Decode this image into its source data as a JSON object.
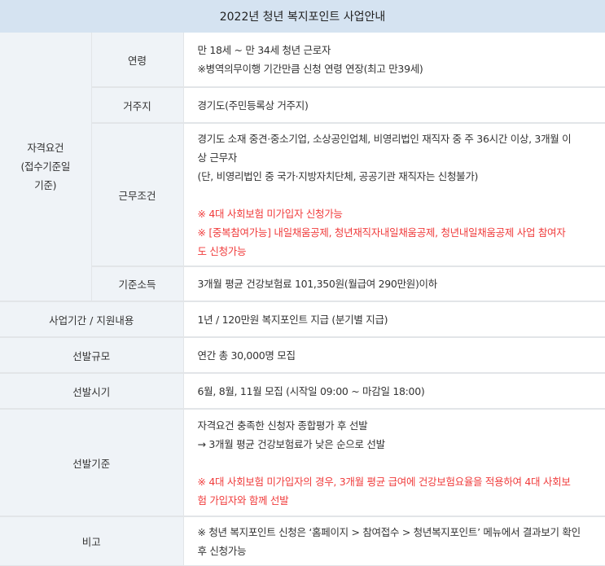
{
  "title": "2022년 청년 복지포인트 사업안내",
  "colors": {
    "header_bg": "#d5e3f1",
    "label_bg": "#eff3f7",
    "warning": "#f03c3c"
  },
  "qualification": {
    "label_lines": [
      "자격요건",
      "(접수기준일",
      "기준)"
    ],
    "age": {
      "label": "연령",
      "lines": [
        "만 18세 ~ 만 34세 청년 근로자",
        "※병역의무이행 기간만큼 신청 연령 연장(최고 만39세)"
      ]
    },
    "residence": {
      "label": "거주지",
      "lines": [
        "경기도(주민등록상 거주지)"
      ]
    },
    "employment": {
      "label": "근무조건",
      "lines": [
        "경기도 소재 중견·중소기업, 소상공인업체, 비영리법인 재직자 중 주 36시간 이상, 3개월 이",
        "상 근무자",
        "(단, 비영리법인 중 국가·지방자치단체, 공공기관 재직자는 신청불가)"
      ],
      "red_lines": [
        "※ 4대 사회보험 미가입자 신청가능",
        "※ [중복참여가능] 내일채움공제, 청년재직자내일채움공제, 청년내일채움공제 사업 참여자",
        "도 신청가능"
      ]
    },
    "income": {
      "label": "기준소득",
      "lines": [
        "3개월 평균 건강보험료 101,350원(월급여 290만원)이하"
      ]
    }
  },
  "period": {
    "label": "사업기간 / 지원내용",
    "lines": [
      "1년 / 120만원 복지포인트 지급 (분기별 지급)"
    ]
  },
  "scale": {
    "label": "선발규모",
    "lines": [
      "연간 총 30,000명 모집"
    ]
  },
  "timing": {
    "label": "선발시기",
    "lines": [
      "6월, 8월, 11월 모집 (시작일 09:00 ~ 마감일 18:00)"
    ]
  },
  "criteria": {
    "label": "선발기준",
    "lines": [
      "자격요건 충족한 신청자 종합평가 후 선발",
      "→ 3개월 평균 건강보험료가 낮은 순으로 선발"
    ],
    "red_lines": [
      "※ 4대 사회보험 미가입자의 경우, 3개월 평균 급여에 건강보험요율을 적용하여 4대 사회보",
      "험 가입자와 함께 선발"
    ]
  },
  "remarks": {
    "label": "비고",
    "lines": [
      "※ 청년 복지포인트 신청은 ‘홈페이지 > 참여접수 > 청년복지포인트’ 메뉴에서 결과보기 확인",
      "후 신청가능"
    ]
  }
}
